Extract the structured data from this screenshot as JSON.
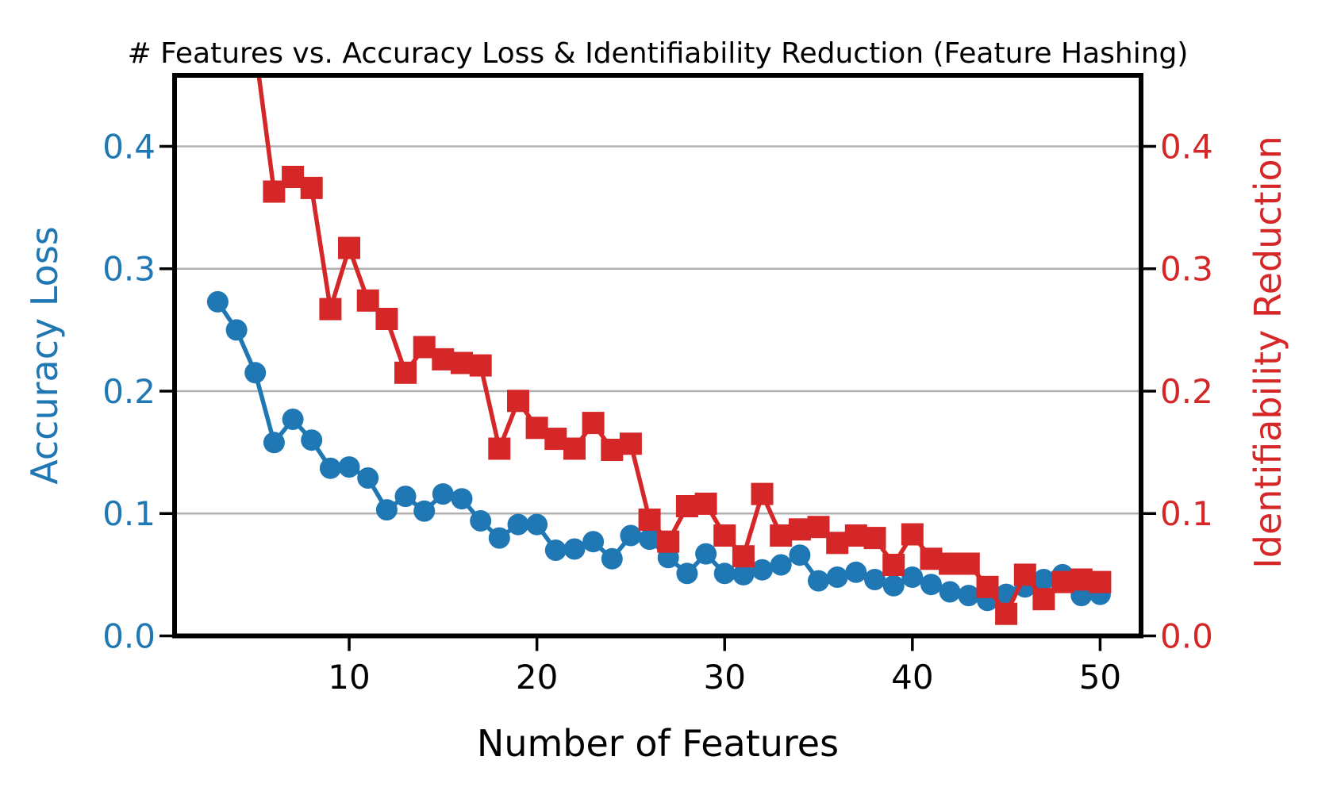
{
  "figure": {
    "title": "# Features vs. Accuracy Loss & Identifiability Reduction (Feature Hashing)",
    "x_axis": {
      "label": "Number of Features",
      "tick_values": [
        10,
        20,
        30,
        40,
        50
      ],
      "tick_labels": [
        "10",
        "20",
        "30",
        "40",
        "50"
      ]
    },
    "left_axis": {
      "label": "Accuracy Loss",
      "color": "#1f77b4",
      "tick_values": [
        0.0,
        0.1,
        0.2,
        0.3,
        0.4
      ],
      "tick_labels": [
        "0.0",
        "0.1",
        "0.2",
        "0.3",
        "0.4"
      ]
    },
    "right_axis": {
      "label": "Identifiability Reduction",
      "color": "#d62728",
      "tick_values": [
        0.0,
        0.1,
        0.2,
        0.3,
        0.4
      ],
      "tick_labels": [
        "0.0",
        "0.1",
        "0.2",
        "0.3",
        "0.4"
      ]
    },
    "grid_color": "#b0b0b0",
    "spine_color": "#000000"
  },
  "chart_data": {
    "type": "line",
    "title": "# Features vs. Accuracy Loss & Identifiability Reduction (Feature Hashing)",
    "xlabel": "Number of Features",
    "ylabel_left": "Accuracy Loss",
    "ylabel_right": "Identifiability Reduction",
    "grid": "horizontal",
    "legend": "none",
    "xlim": [
      0.7,
      52.18
    ],
    "ylim_left": [
      0,
      0.458
    ],
    "ylim_right": [
      0,
      0.458
    ],
    "x": [
      3,
      4,
      5,
      6,
      7,
      8,
      9,
      10,
      11,
      12,
      13,
      14,
      15,
      16,
      17,
      18,
      19,
      20,
      21,
      22,
      23,
      24,
      25,
      26,
      27,
      28,
      29,
      30,
      31,
      32,
      33,
      34,
      35,
      36,
      37,
      38,
      39,
      40,
      41,
      42,
      43,
      44,
      45,
      46,
      47,
      48,
      49,
      50
    ],
    "series": [
      {
        "id": "accuracy-loss",
        "name": "Accuracy Loss",
        "axis": "left",
        "color": "#1f77b4",
        "marker": "circle",
        "values": [
          0.273,
          0.25,
          0.215,
          0.158,
          0.177,
          0.16,
          0.137,
          0.138,
          0.129,
          0.103,
          0.114,
          0.102,
          0.116,
          0.112,
          0.094,
          0.08,
          0.091,
          0.091,
          0.07,
          0.071,
          0.077,
          0.063,
          0.082,
          0.079,
          0.064,
          0.051,
          0.067,
          0.051,
          0.05,
          0.054,
          0.058,
          0.066,
          0.045,
          0.048,
          0.052,
          0.046,
          0.041,
          0.048,
          0.042,
          0.036,
          0.033,
          0.029,
          0.034,
          0.04,
          0.046,
          0.05,
          0.033,
          0.034
        ]
      },
      {
        "id": "identifiability-reduction",
        "name": "Identifiability Reduction",
        "axis": "right",
        "color": "#d62728",
        "marker": "square",
        "note": "value at x=5 lies above the top of the axis; the line is clipped at the plot edge",
        "values": [
          null,
          null,
          0.48,
          0.363,
          0.375,
          0.366,
          0.267,
          0.317,
          0.274,
          0.259,
          0.215,
          0.236,
          0.226,
          0.223,
          0.221,
          0.153,
          0.192,
          0.17,
          0.161,
          0.153,
          0.174,
          0.152,
          0.157,
          0.095,
          0.077,
          0.106,
          0.108,
          0.082,
          0.065,
          0.116,
          0.082,
          0.087,
          0.089,
          0.076,
          0.082,
          0.08,
          0.058,
          0.083,
          0.063,
          0.059,
          0.059,
          0.04,
          0.018,
          0.05,
          0.03,
          0.044,
          0.046,
          0.044
        ]
      }
    ]
  }
}
